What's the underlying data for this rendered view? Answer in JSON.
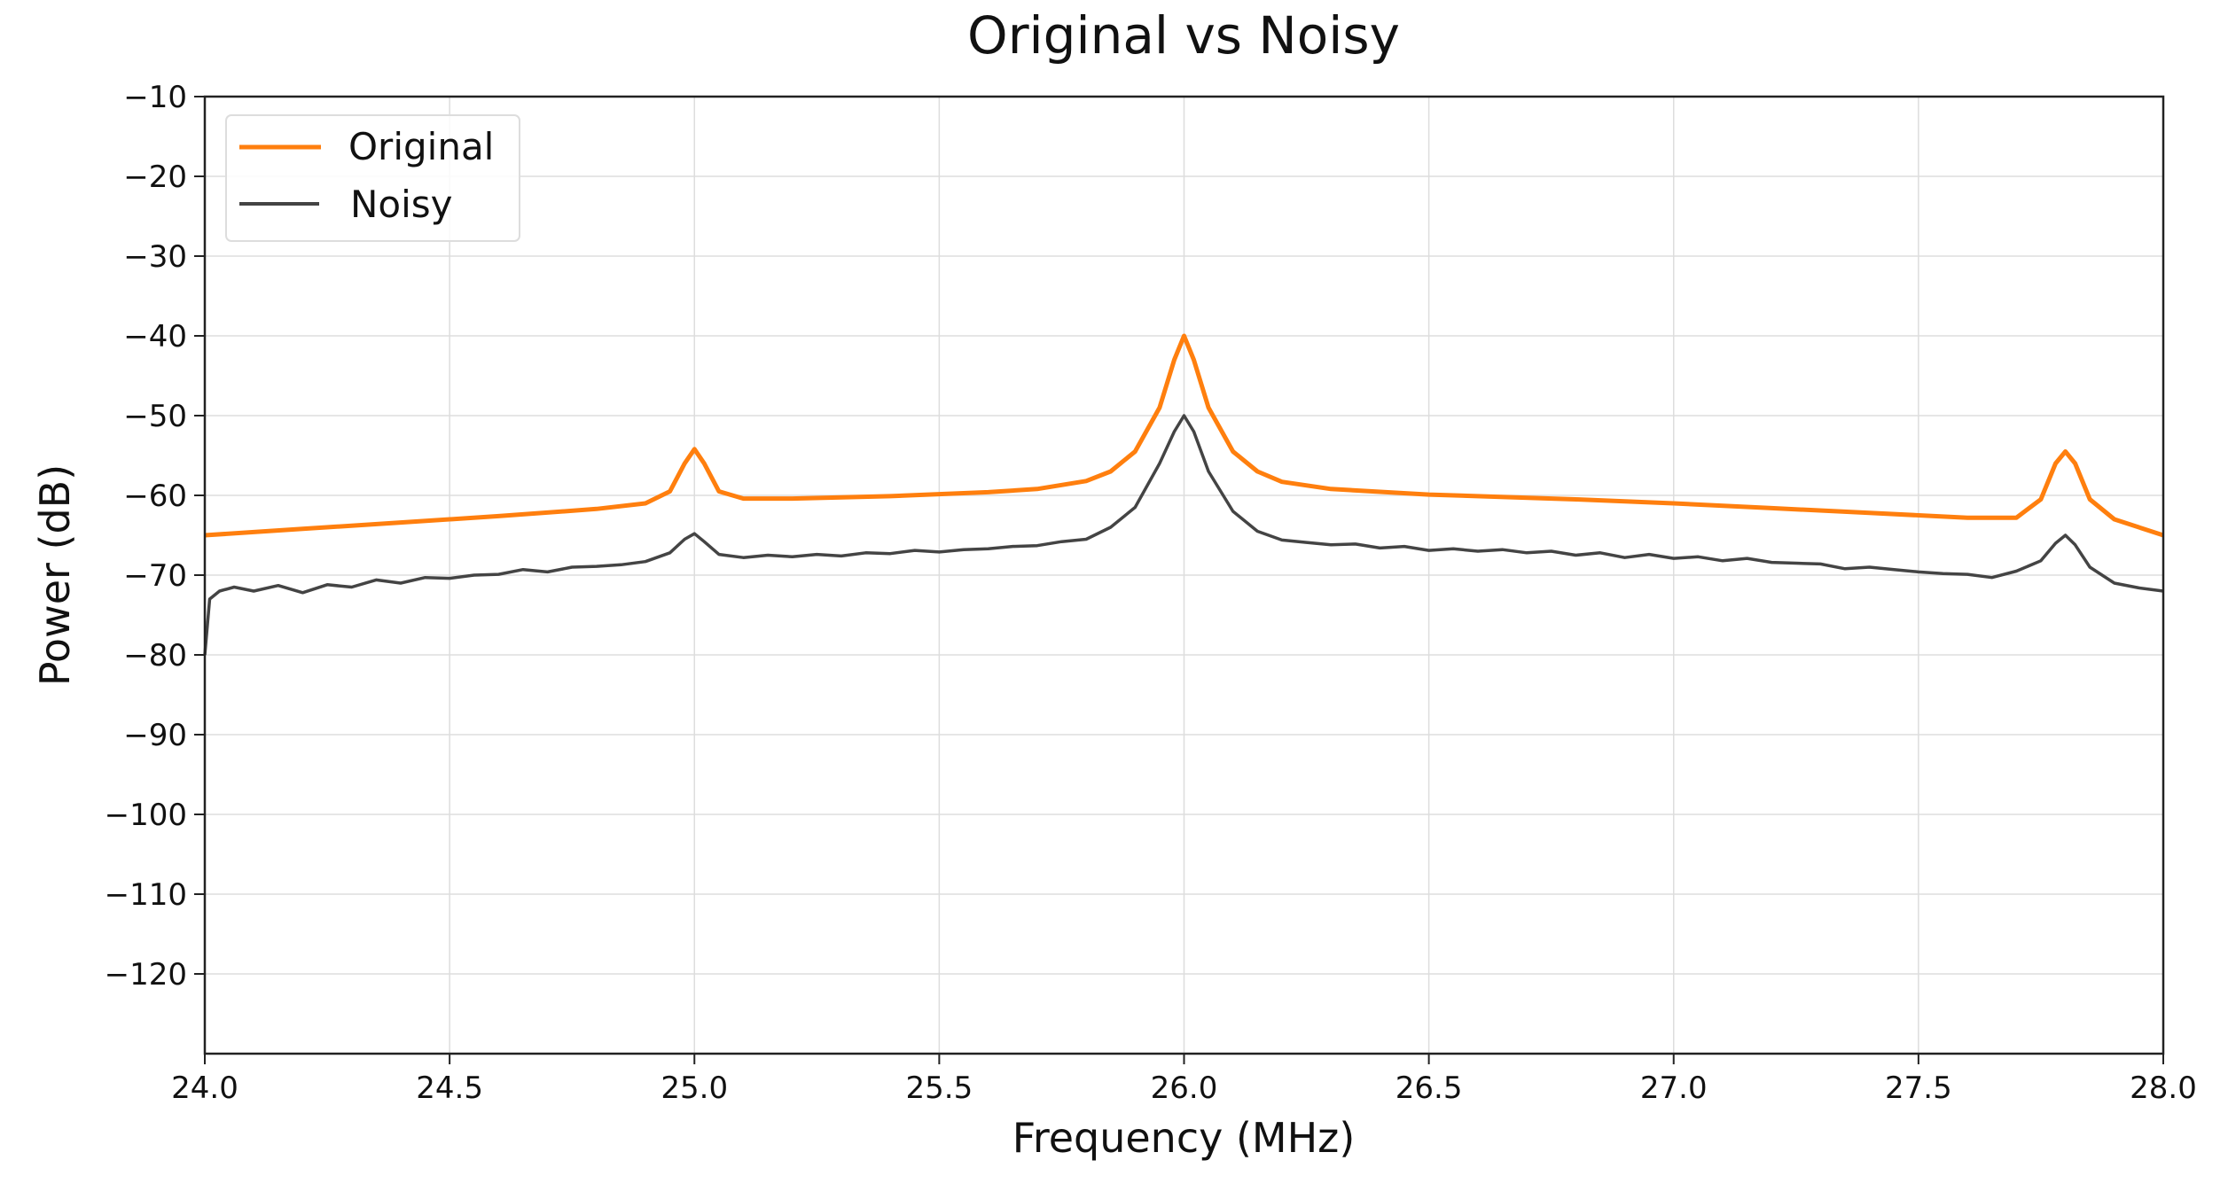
{
  "chart_data": {
    "type": "line",
    "title": "Original vs Noisy",
    "xlabel": "Frequency (MHz)",
    "ylabel": "Power (dB)",
    "xlim": [
      24.0,
      28.0
    ],
    "ylim": [
      -130,
      -10
    ],
    "xticks": [
      24.0,
      24.5,
      25.0,
      25.5,
      26.0,
      26.5,
      27.0,
      27.5,
      28.0
    ],
    "xtick_labels": [
      "24.0",
      "24.5",
      "25.0",
      "25.5",
      "26.0",
      "26.5",
      "27.0",
      "27.5",
      "28.0"
    ],
    "yticks": [
      -10,
      -20,
      -30,
      -40,
      -50,
      -60,
      -70,
      -80,
      -90,
      -100,
      -110,
      -120
    ],
    "ytick_labels": [
      "−10",
      "−20",
      "−30",
      "−40",
      "−50",
      "−60",
      "−70",
      "−80",
      "−90",
      "−100",
      "−110",
      "−120"
    ],
    "grid": true,
    "legend_position": "top-left",
    "series": [
      {
        "name": "Original",
        "color": "#ff7f0e",
        "x": [
          24.0,
          24.2,
          24.4,
          24.6,
          24.8,
          24.9,
          24.95,
          24.98,
          25.0,
          25.02,
          25.05,
          25.1,
          25.2,
          25.4,
          25.6,
          25.7,
          25.8,
          25.85,
          25.9,
          25.95,
          25.98,
          26.0,
          26.02,
          26.05,
          26.1,
          26.15,
          26.2,
          26.3,
          26.5,
          26.8,
          27.0,
          27.2,
          27.4,
          27.6,
          27.7,
          27.75,
          27.78,
          27.8,
          27.82,
          27.85,
          27.9,
          28.0
        ],
        "y": [
          -65,
          -64.2,
          -63.4,
          -62.6,
          -61.7,
          -61,
          -59.5,
          -56,
          -54.2,
          -56,
          -59.5,
          -60.4,
          -60.4,
          -60.1,
          -59.6,
          -59.2,
          -58.2,
          -57,
          -54.5,
          -49,
          -43,
          -40,
          -43,
          -49,
          -54.5,
          -57,
          -58.3,
          -59.2,
          -59.9,
          -60.5,
          -61,
          -61.6,
          -62.2,
          -62.8,
          -62.8,
          -60.5,
          -56,
          -54.5,
          -56,
          -60.5,
          -63,
          -65
        ]
      },
      {
        "name": "Noisy",
        "color": "#444444",
        "x": [
          24.0,
          24.01,
          24.03,
          24.06,
          24.1,
          24.15,
          24.2,
          24.25,
          24.3,
          24.35,
          24.4,
          24.45,
          24.5,
          24.55,
          24.6,
          24.65,
          24.7,
          24.75,
          24.8,
          24.85,
          24.9,
          24.95,
          24.98,
          25.0,
          25.02,
          25.05,
          25.1,
          25.15,
          25.2,
          25.25,
          25.3,
          25.35,
          25.4,
          25.45,
          25.5,
          25.55,
          25.6,
          25.65,
          25.7,
          25.75,
          25.8,
          25.85,
          25.9,
          25.95,
          25.98,
          26.0,
          26.02,
          26.05,
          26.1,
          26.15,
          26.2,
          26.25,
          26.3,
          26.35,
          26.4,
          26.45,
          26.5,
          26.55,
          26.6,
          26.65,
          26.7,
          26.75,
          26.8,
          26.85,
          26.9,
          26.95,
          27.0,
          27.05,
          27.1,
          27.15,
          27.2,
          27.25,
          27.3,
          27.35,
          27.4,
          27.45,
          27.5,
          27.55,
          27.6,
          27.65,
          27.7,
          27.75,
          27.78,
          27.8,
          27.82,
          27.85,
          27.9,
          27.95,
          28.0
        ],
        "y": [
          -80,
          -73,
          -72,
          -71.5,
          -72,
          -71.3,
          -72.2,
          -71.2,
          -71.5,
          -70.6,
          -71,
          -70.3,
          -70.4,
          -70,
          -69.9,
          -69.3,
          -69.6,
          -69,
          -68.9,
          -68.7,
          -68.3,
          -67.2,
          -65.5,
          -64.8,
          -65.8,
          -67.4,
          -67.8,
          -67.5,
          -67.7,
          -67.4,
          -67.6,
          -67.2,
          -67.3,
          -66.9,
          -67.1,
          -66.8,
          -66.7,
          -66.4,
          -66.3,
          -65.8,
          -65.5,
          -64,
          -61.5,
          -56,
          -52,
          -50,
          -52,
          -57,
          -62,
          -64.5,
          -65.6,
          -65.9,
          -66.2,
          -66.1,
          -66.6,
          -66.4,
          -66.9,
          -66.7,
          -67,
          -66.8,
          -67.2,
          -67,
          -67.5,
          -67.2,
          -67.8,
          -67.4,
          -67.9,
          -67.7,
          -68.2,
          -67.9,
          -68.4,
          -68.5,
          -68.6,
          -69.2,
          -69,
          -69.3,
          -69.6,
          -69.8,
          -69.9,
          -70.3,
          -69.5,
          -68.2,
          -66,
          -65,
          -66.2,
          -69,
          -71,
          -71.6,
          -72
        ]
      }
    ]
  }
}
